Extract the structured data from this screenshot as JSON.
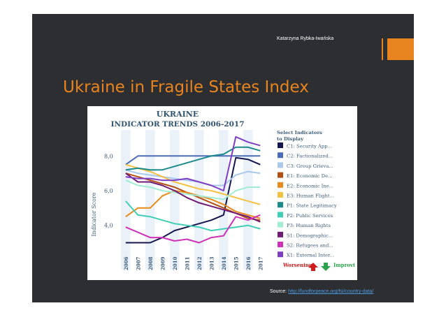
{
  "slide": {
    "author": "Katarzyna Rybka-Iwańska",
    "title": "Ukraine in Fragile States Index",
    "source_label": "Source:",
    "source_link": "http://fundforpeace.org/fsi/country-data/"
  },
  "colors": {
    "background": "#2d2e32",
    "accent": "#e8841f",
    "title": "#e8841f",
    "link": "#4b9be0"
  },
  "chart_data": {
    "type": "line",
    "title": "UKRAINE",
    "subtitle": "INDICATOR TRENDS 2006-2017",
    "ylabel": "Indicator Score",
    "xlabel": "",
    "ylim": [
      2.9,
      9.5
    ],
    "yticks": [
      "8,0",
      "6,0",
      "4,0"
    ],
    "ytick_values": [
      8,
      6,
      4
    ],
    "grid": "alternating column bands",
    "x": [
      "2006",
      "2007",
      "2008",
      "2009",
      "2010",
      "2011",
      "2012",
      "2013",
      "2014",
      "2015",
      "2016",
      "2017"
    ],
    "legend_title": "Select Indicators to Display",
    "legend_position": "right",
    "series": [
      {
        "name": "C1: Security App...",
        "color": "#15154f",
        "values": [
          3.0,
          3.0,
          3.0,
          3.3,
          3.7,
          3.9,
          4.1,
          4.3,
          4.6,
          7.9,
          7.8,
          7.5
        ]
      },
      {
        "name": "C2: Factionalized...",
        "color": "#4a6cb8",
        "values": [
          7.5,
          8.0,
          8.0,
          8.0,
          8.0,
          8.0,
          8.0,
          8.0,
          8.0,
          8.0,
          8.0,
          8.0
        ]
      },
      {
        "name": "C3: Group Grieva...",
        "color": "#a9c8ec",
        "values": [
          7.2,
          7.0,
          6.9,
          6.8,
          6.7,
          6.6,
          6.5,
          6.3,
          6.3,
          6.9,
          7.1,
          7.0
        ]
      },
      {
        "name": "E1: Economic De...",
        "color": "#b34f12",
        "values": [
          7.0,
          6.8,
          6.6,
          6.4,
          6.2,
          5.9,
          5.6,
          5.3,
          5.0,
          4.7,
          4.4,
          4.3
        ]
      },
      {
        "name": "E2: Economic Ine...",
        "color": "#e8891c",
        "values": [
          4.5,
          5.0,
          5.0,
          5.7,
          6.0,
          5.9,
          5.7,
          5.5,
          5.2,
          4.8,
          4.6,
          4.4
        ]
      },
      {
        "name": "E3: Human Flight...",
        "color": "#f5c142",
        "values": [
          7.5,
          7.3,
          7.1,
          6.8,
          6.5,
          6.3,
          6.1,
          6.0,
          5.8,
          5.6,
          5.4,
          5.2
        ]
      },
      {
        "name": "P1: State Legitimacy",
        "color": "#1c8a8a",
        "values": [
          7.2,
          7.3,
          7.2,
          7.2,
          7.4,
          7.6,
          7.8,
          8.0,
          8.1,
          8.5,
          8.5,
          8.3
        ]
      },
      {
        "name": "P2: Public Services",
        "color": "#3fcfb6",
        "values": [
          5.4,
          4.6,
          4.5,
          4.3,
          4.1,
          4.0,
          3.9,
          3.7,
          3.8,
          3.9,
          4.0,
          3.8
        ]
      },
      {
        "name": "P3: Human Rights",
        "color": "#a3ecd4",
        "values": [
          6.6,
          6.3,
          6.2,
          6.0,
          5.9,
          5.8,
          5.7,
          5.6,
          5.5,
          6.0,
          6.2,
          6.2
        ]
      },
      {
        "name": "S1: Demographic...",
        "color": "#6f1b76",
        "values": [
          7.0,
          6.5,
          6.5,
          6.3,
          6.0,
          5.6,
          5.3,
          5.1,
          4.9,
          4.7,
          4.5,
          4.2
        ]
      },
      {
        "name": "S2: Refugees and...",
        "color": "#cf32b8",
        "values": [
          3.9,
          3.6,
          3.3,
          3.3,
          3.1,
          3.2,
          3.0,
          3.3,
          3.4,
          4.5,
          4.3,
          4.6
        ]
      },
      {
        "name": "X1: External Inter...",
        "color": "#7e3ec4",
        "values": [
          6.8,
          6.7,
          6.7,
          6.6,
          6.6,
          6.7,
          6.5,
          6.3,
          6.0,
          9.1,
          8.8,
          8.6
        ]
      }
    ],
    "footer_worsening": "Worsening",
    "footer_improving": "Improvi",
    "footer_colors": {
      "worsening": "#d11a1a",
      "improving": "#2aa34a"
    }
  }
}
